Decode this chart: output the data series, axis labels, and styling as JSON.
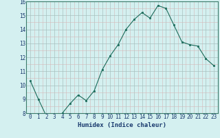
{
  "x": [
    0,
    1,
    2,
    3,
    4,
    5,
    6,
    7,
    8,
    9,
    10,
    11,
    12,
    13,
    14,
    15,
    16,
    17,
    18,
    19,
    20,
    21,
    22,
    23
  ],
  "y": [
    10.3,
    9.0,
    7.8,
    7.6,
    8.0,
    8.7,
    9.3,
    8.9,
    9.6,
    11.1,
    12.1,
    12.9,
    14.0,
    14.7,
    15.2,
    14.8,
    15.7,
    15.5,
    14.3,
    13.1,
    12.9,
    12.8,
    11.9,
    11.4
  ],
  "xlabel": "Humidex (Indice chaleur)",
  "ylim": [
    8,
    16
  ],
  "xlim": [
    -0.5,
    23.5
  ],
  "yticks": [
    8,
    9,
    10,
    11,
    12,
    13,
    14,
    15,
    16
  ],
  "xticks": [
    0,
    1,
    2,
    3,
    4,
    5,
    6,
    7,
    8,
    9,
    10,
    11,
    12,
    13,
    14,
    15,
    16,
    17,
    18,
    19,
    20,
    21,
    22,
    23
  ],
  "line_color": "#1a6b5a",
  "marker_color": "#1a6b5a",
  "bg_color": "#d4f0f0",
  "grid_color_major": "#b8d0ce",
  "grid_color_minor": "#c8dede",
  "xlabel_fontsize": 6.5,
  "tick_fontsize": 5.5,
  "label_color": "#1a3a6e"
}
